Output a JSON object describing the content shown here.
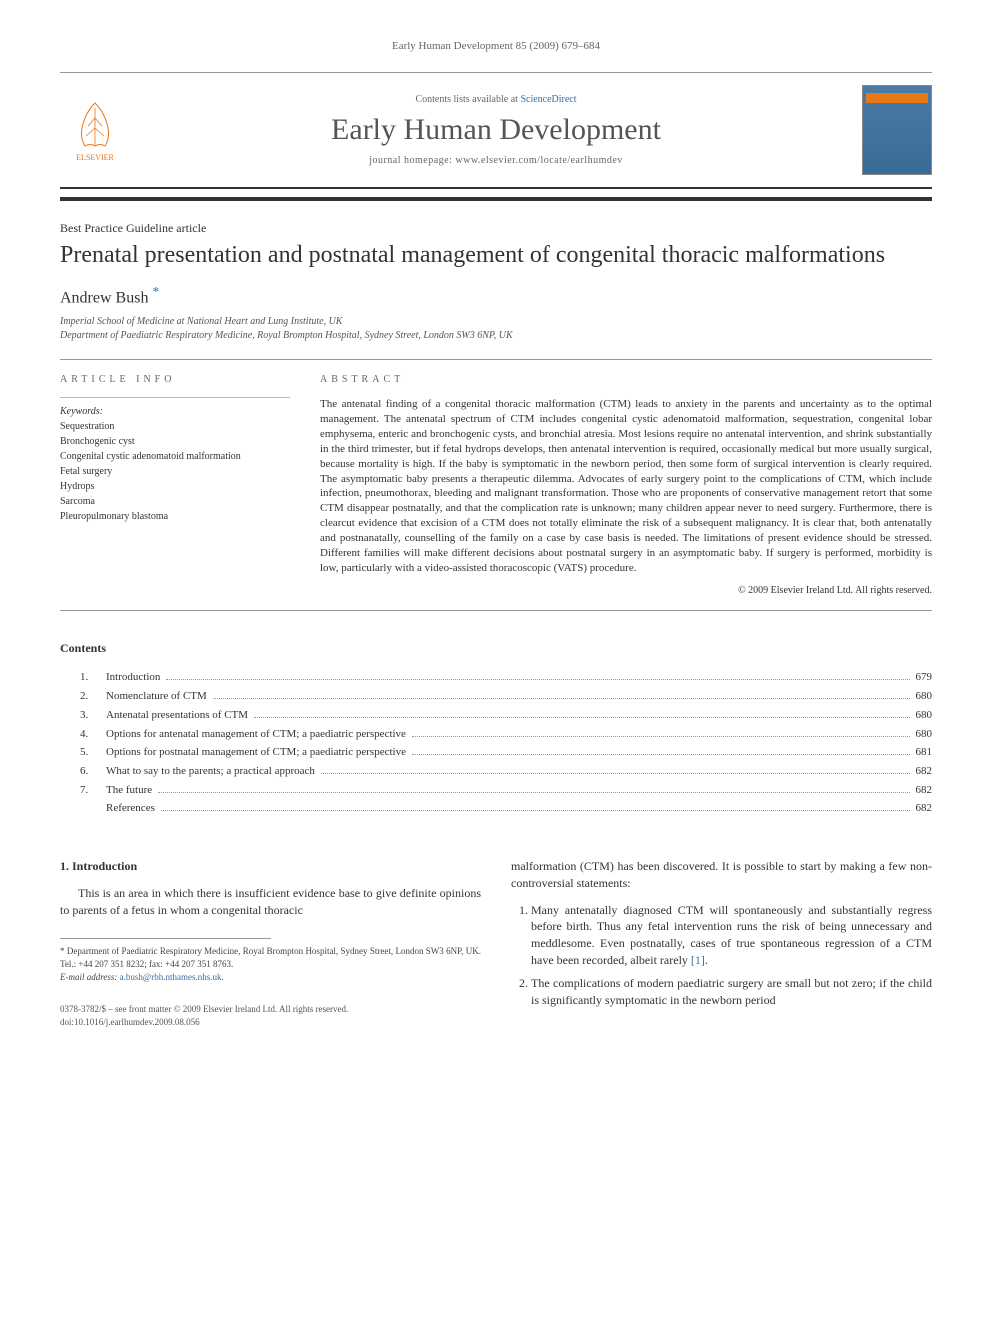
{
  "running_header": "Early Human Development 85 (2009) 679–684",
  "masthead": {
    "contents_prefix": "Contents lists available at ",
    "contents_link": "ScienceDirect",
    "journal_name": "Early Human Development",
    "homepage_prefix": "journal homepage: ",
    "homepage_url": "www.elsevier.com/locate/earlhumdev",
    "publisher": "ELSEVIER"
  },
  "article": {
    "type": "Best Practice Guideline article",
    "title": "Prenatal presentation and postnatal management of congenital thoracic malformations",
    "author": "Andrew Bush",
    "author_mark": "*",
    "affiliations": [
      "Imperial School of Medicine at National Heart and Lung Institute, UK",
      "Department of Paediatric Respiratory Medicine, Royal Brompton Hospital, Sydney Street, London SW3 6NP, UK"
    ]
  },
  "info": {
    "label": "ARTICLE INFO",
    "keywords_label": "Keywords:",
    "keywords": [
      "Sequestration",
      "Bronchogenic cyst",
      "Congenital cystic adenomatoid malformation",
      "Fetal surgery",
      "Hydrops",
      "Sarcoma",
      "Pleuropulmonary blastoma"
    ]
  },
  "abstract": {
    "label": "ABSTRACT",
    "text": "The antenatal finding of a congenital thoracic malformation (CTM) leads to anxiety in the parents and uncertainty as to the optimal management. The antenatal spectrum of CTM includes congenital cystic adenomatoid malformation, sequestration, congenital lobar emphysema, enteric and bronchogenic cysts, and bronchial atresia. Most lesions require no antenatal intervention, and shrink substantially in the third trimester, but if fetal hydrops develops, then antenatal intervention is required, occasionally medical but more usually surgical, because mortality is high. If the baby is symptomatic in the newborn period, then some form of surgical intervention is clearly required. The asymptomatic baby presents a therapeutic dilemma. Advocates of early surgery point to the complications of CTM, which include infection, pneumothorax, bleeding and malignant transformation. Those who are proponents of conservative management retort that some CTM disappear postnatally, and that the complication rate is unknown; many children appear never to need surgery. Furthermore, there is clearcut evidence that excision of a CTM does not totally eliminate the risk of a subsequent malignancy. It is clear that, both antenatally and postnanatally, counselling of the family on a case by case basis is needed. The limitations of present evidence should be stressed. Different families will make different decisions about postnatal surgery in an asymptomatic baby. If surgery is performed, morbidity is low, particularly with a video-assisted thoracoscopic (VATS) procedure.",
    "copyright": "© 2009 Elsevier Ireland Ltd. All rights reserved."
  },
  "contents": {
    "heading": "Contents",
    "items": [
      {
        "num": "1.",
        "title": "Introduction",
        "page": "679"
      },
      {
        "num": "2.",
        "title": "Nomenclature of CTM",
        "page": "680"
      },
      {
        "num": "3.",
        "title": "Antenatal presentations of CTM",
        "page": "680"
      },
      {
        "num": "4.",
        "title": "Options for antenatal management of CTM; a paediatric perspective",
        "page": "680"
      },
      {
        "num": "5.",
        "title": "Options for postnatal management of CTM; a paediatric perspective",
        "page": "681"
      },
      {
        "num": "6.",
        "title": "What to say to the parents; a practical approach",
        "page": "682"
      },
      {
        "num": "7.",
        "title": "The future",
        "page": "682"
      },
      {
        "num": "",
        "title": "References",
        "page": "682"
      }
    ]
  },
  "body": {
    "intro_heading": "1. Introduction",
    "intro_para": "This is an area in which there is insufficient evidence base to give definite opinions to parents of a fetus in whom a congenital thoracic",
    "col2_lead": "malformation (CTM) has been discovered. It is possible to start by making a few non-controversial statements:",
    "list": [
      "Many antenatally diagnosed CTM will spontaneously and substantially regress before birth. Thus any fetal intervention runs the risk of being unnecessary and meddlesome. Even postnatally, cases of true spontaneous regression of a CTM have been recorded, albeit rarely [1].",
      "The complications of modern paediatric surgery are small but not zero; if the child is significantly symptomatic in the newborn period"
    ]
  },
  "footnote": {
    "corr": "* Department of Paediatric Respiratory Medicine, Royal Brompton Hospital, Sydney Street, London SW3 6NP, UK. Tel.: +44 207 351 8232; fax: +44 207 351 8763.",
    "email_label": "E-mail address:",
    "email": "a.bush@rbh.nthames.nhs.uk"
  },
  "bottom": {
    "issn": "0378-3782/$ – see front matter © 2009 Elsevier Ireland Ltd. All rights reserved.",
    "doi": "doi:10.1016/j.earlhumdev.2009.08.056"
  },
  "colors": {
    "link": "#3a6ea5",
    "publisher_orange": "#e67817",
    "rule_dark": "#333333",
    "text": "#333333"
  }
}
